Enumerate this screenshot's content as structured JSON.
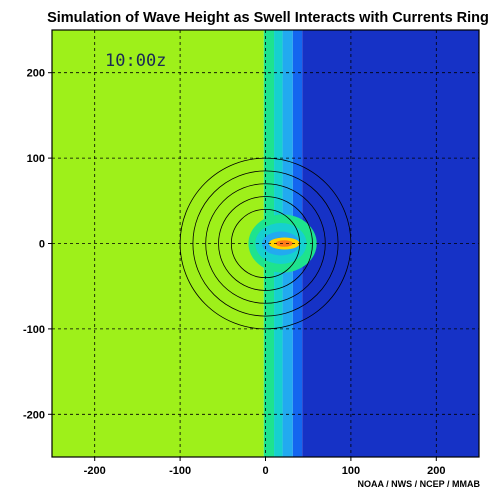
{
  "chart_data": {
    "type": "heatmap",
    "title": "Simulation of Wave Height as Swell Interacts with Currents Ring",
    "annotation": "10:00z",
    "credit": "NOAA / NWS / NCEP / MMAB",
    "xlabel": "",
    "ylabel": "",
    "xlim": [
      -250,
      250
    ],
    "ylim": [
      -250,
      250
    ],
    "x_ticks": [
      -200,
      -100,
      0,
      100,
      200
    ],
    "y_ticks": [
      200,
      100,
      0,
      -100,
      -200
    ],
    "grid": true,
    "colors": {
      "level_1": "#9ef01a",
      "level_2": "#1ee38e",
      "level_3": "#16d0cf",
      "level_4": "#22aaf0",
      "level_5": "#1466ef",
      "level_6": "#1632c6",
      "peak_outer": "#ffd200",
      "peak_inner": "#ff7a1a",
      "grid": "#000000",
      "contour": "#000000"
    },
    "bands_x": [
      {
        "x0": -250,
        "x1": -2,
        "level": "level_1"
      },
      {
        "x0": -2,
        "x1": 10,
        "level": "level_2"
      },
      {
        "x0": 10,
        "x1": 20,
        "level": "level_3"
      },
      {
        "x0": 20,
        "x1": 32,
        "level": "level_4"
      },
      {
        "x0": 32,
        "x1": 43,
        "level": "level_5"
      },
      {
        "x0": 43,
        "x1": 250,
        "level": "level_6"
      }
    ],
    "current_ring": {
      "center": [
        0,
        0
      ],
      "radii": [
        40,
        55,
        70,
        85,
        100
      ]
    },
    "peak": {
      "center": [
        22,
        0
      ],
      "rx": 18,
      "ry": 7
    }
  }
}
